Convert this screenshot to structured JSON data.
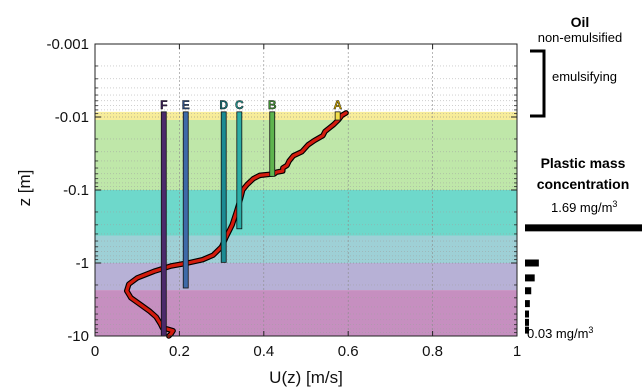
{
  "chart_data": {
    "type": "line",
    "xlabel": "U(z) [m/s]",
    "ylabel": "z [m]",
    "xlim": [
      0,
      1
    ],
    "ylim": [
      -0.001,
      -10
    ],
    "yscale": "log",
    "xticks": [
      {
        "value": 0,
        "label": "0"
      },
      {
        "value": 0.2,
        "label": "0.2"
      },
      {
        "value": 0.4,
        "label": "0.4"
      },
      {
        "value": 0.6,
        "label": "0.6"
      },
      {
        "value": 0.8,
        "label": "0.8"
      },
      {
        "value": 1,
        "label": "1"
      }
    ],
    "yticks": [
      {
        "value": 0.001,
        "label": "-0.001"
      },
      {
        "value": 0.01,
        "label": "-0.01"
      },
      {
        "value": 0.1,
        "label": "-0.1"
      },
      {
        "value": 1,
        "label": "-1"
      },
      {
        "value": 10,
        "label": "-10"
      }
    ],
    "grid": true,
    "bands": [
      {
        "z_top": 0.0085,
        "z_bottom": 0.011,
        "color": "#f7ec9a"
      },
      {
        "z_top": 0.011,
        "z_bottom": 0.1,
        "color": "#bfe7a9"
      },
      {
        "z_top": 0.1,
        "z_bottom": 0.42,
        "color": "#6ed8cb"
      },
      {
        "z_top": 0.42,
        "z_bottom": 1.0,
        "color": "#9ed0d6"
      },
      {
        "z_top": 1.0,
        "z_bottom": 2.35,
        "color": "#b7b1d6"
      },
      {
        "z_top": 2.35,
        "z_bottom": 11,
        "color": "#c68fc0"
      }
    ],
    "profile": {
      "color": "#d31b0d",
      "points": [
        [
          0.595,
          0.0088
        ],
        [
          0.585,
          0.0095
        ],
        [
          0.578,
          0.0108
        ],
        [
          0.565,
          0.0128
        ],
        [
          0.555,
          0.0142
        ],
        [
          0.545,
          0.0158
        ],
        [
          0.54,
          0.018
        ],
        [
          0.52,
          0.021
        ],
        [
          0.505,
          0.024
        ],
        [
          0.49,
          0.03
        ],
        [
          0.47,
          0.034
        ],
        [
          0.46,
          0.04
        ],
        [
          0.455,
          0.046
        ],
        [
          0.445,
          0.05
        ],
        [
          0.445,
          0.055
        ],
        [
          0.43,
          0.057
        ],
        [
          0.425,
          0.06
        ],
        [
          0.39,
          0.063
        ],
        [
          0.375,
          0.07
        ],
        [
          0.36,
          0.085
        ],
        [
          0.35,
          0.1
        ],
        [
          0.345,
          0.13
        ],
        [
          0.335,
          0.2
        ],
        [
          0.325,
          0.3
        ],
        [
          0.31,
          0.45
        ],
        [
          0.3,
          0.6
        ],
        [
          0.28,
          0.78
        ],
        [
          0.255,
          0.9
        ],
        [
          0.22,
          1.0
        ],
        [
          0.18,
          1.1
        ],
        [
          0.14,
          1.3
        ],
        [
          0.1,
          1.6
        ],
        [
          0.08,
          1.95
        ],
        [
          0.075,
          2.4
        ],
        [
          0.085,
          3.0
        ],
        [
          0.11,
          3.8
        ],
        [
          0.13,
          4.6
        ],
        [
          0.145,
          5.5
        ],
        [
          0.155,
          6.8
        ],
        [
          0.16,
          7.8
        ],
        [
          0.17,
          8.0
        ],
        [
          0.185,
          8.5
        ],
        [
          0.18,
          9.4
        ],
        [
          0.175,
          10
        ]
      ]
    },
    "sample_bars": [
      {
        "label": "A",
        "x": 0.575,
        "z_top": 0.0085,
        "z_bottom": 0.011,
        "color": "#f2de4a",
        "label_color": "#c7a100"
      },
      {
        "label": "B",
        "x": 0.42,
        "z_top": 0.0085,
        "z_bottom": 0.065,
        "color": "#5eb44e",
        "label_color": "#3f8f32"
      },
      {
        "label": "C",
        "x": 0.342,
        "z_top": 0.0085,
        "z_bottom": 0.34,
        "color": "#2bada6",
        "label_color": "#1f8b86"
      },
      {
        "label": "D",
        "x": 0.305,
        "z_top": 0.0085,
        "z_bottom": 0.98,
        "color": "#1b8a93",
        "label_color": "#156d74"
      },
      {
        "label": "E",
        "x": 0.215,
        "z_top": 0.0085,
        "z_bottom": 2.2,
        "color": "#3e6aa8",
        "label_color": "#2e4d80"
      },
      {
        "label": "F",
        "x": 0.163,
        "z_top": 0.0085,
        "z_bottom": 11,
        "color": "#4b2a6b",
        "label_color": "#3a1e55"
      }
    ]
  },
  "side": {
    "oil_title": "Oil",
    "oil_sub": "non-emulsified",
    "emulsifying": "emulsifying",
    "plastic_title_line1": "Plastic mass",
    "plastic_title_line2": "concentration",
    "conc_max": "1.69 mg/m",
    "conc_min": "0.03 mg/m",
    "conc_sup": "3",
    "conc_bars": [
      {
        "z": 0.33,
        "value": 1.69
      },
      {
        "z": 1.0,
        "value": 0.2
      },
      {
        "z": 1.6,
        "value": 0.14
      },
      {
        "z": 2.4,
        "value": 0.09
      },
      {
        "z": 3.6,
        "value": 0.07
      },
      {
        "z": 5.0,
        "value": 0.05
      },
      {
        "z": 6.5,
        "value": 0.04
      },
      {
        "z": 8.3,
        "value": 0.03
      }
    ]
  }
}
